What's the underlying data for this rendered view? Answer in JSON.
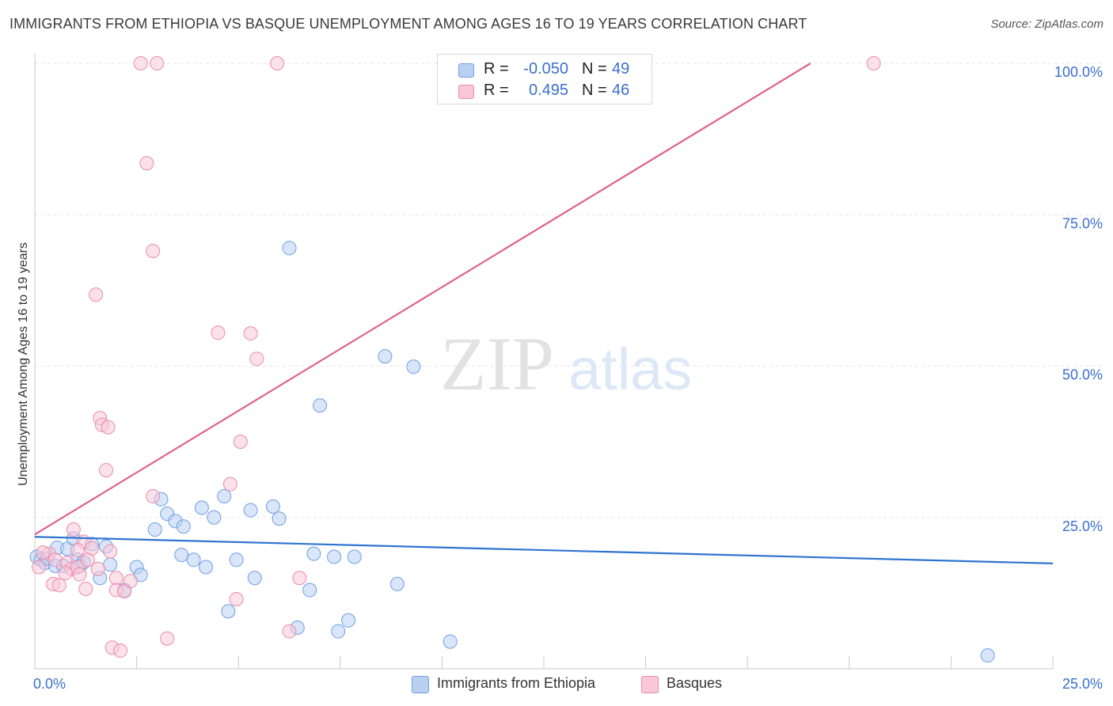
{
  "title": "IMMIGRANTS FROM ETHIOPIA VS BASQUE UNEMPLOYMENT AMONG AGES 16 TO 19 YEARS CORRELATION CHART",
  "source": "Source: ZipAtlas.com",
  "watermark": {
    "zip": "ZIP",
    "atlas": "atlas"
  },
  "legend": {
    "rows": [
      {
        "r_label": "R =",
        "r_value": "-0.050",
        "n_label": "N =",
        "n_value": "49"
      },
      {
        "r_label": "R =",
        "r_value": "0.495",
        "n_label": "N =",
        "n_value": "46"
      }
    ]
  },
  "chart_data": {
    "type": "scatter",
    "xlabel": "",
    "ylabel": "Unemployment Among Ages 16 to 19 years",
    "xlim": [
      0,
      25
    ],
    "ylim": [
      0,
      100
    ],
    "x_tick_labels": [
      {
        "value": 0,
        "label": "0.0%"
      },
      {
        "value": 25,
        "label": "25.0%"
      }
    ],
    "y_tick_labels": [
      {
        "value": 25,
        "label": "25.0%"
      },
      {
        "value": 50,
        "label": "50.0%"
      },
      {
        "value": 75,
        "label": "75.0%"
      },
      {
        "value": 100,
        "label": "100.0%"
      }
    ],
    "grid": true,
    "series": [
      {
        "name": "Immigrants from Ethiopia",
        "color": "#6d9fe6",
        "fill": "#b9d0f3",
        "trend": {
          "x": [
            0,
            25
          ],
          "y": [
            21.8,
            17.4
          ],
          "color": "#2f73d0"
        },
        "points": [
          [
            0.05,
            18.5
          ],
          [
            0.15,
            18.0
          ],
          [
            0.25,
            17.5
          ],
          [
            0.3,
            18.2
          ],
          [
            0.5,
            17.0
          ],
          [
            0.55,
            20.0
          ],
          [
            0.7,
            17.0
          ],
          [
            0.8,
            19.8
          ],
          [
            0.95,
            21.5
          ],
          [
            1.05,
            18.0
          ],
          [
            1.1,
            17.0
          ],
          [
            1.2,
            17.6
          ],
          [
            1.4,
            20.6
          ],
          [
            1.6,
            15.0
          ],
          [
            1.75,
            20.2
          ],
          [
            1.85,
            17.2
          ],
          [
            2.2,
            13.0
          ],
          [
            2.5,
            16.8
          ],
          [
            2.6,
            15.5
          ],
          [
            2.95,
            23.0
          ],
          [
            3.1,
            28.0
          ],
          [
            3.25,
            25.6
          ],
          [
            3.45,
            24.4
          ],
          [
            3.6,
            18.8
          ],
          [
            3.65,
            23.5
          ],
          [
            3.9,
            18.0
          ],
          [
            4.1,
            26.6
          ],
          [
            4.2,
            16.8
          ],
          [
            4.4,
            25.0
          ],
          [
            4.65,
            28.5
          ],
          [
            4.75,
            9.5
          ],
          [
            4.95,
            18.0
          ],
          [
            5.3,
            26.2
          ],
          [
            5.4,
            15.0
          ],
          [
            5.85,
            26.8
          ],
          [
            6.0,
            24.8
          ],
          [
            6.25,
            69.5
          ],
          [
            6.45,
            6.8
          ],
          [
            6.75,
            13.0
          ],
          [
            6.85,
            19.0
          ],
          [
            7.0,
            43.5
          ],
          [
            7.35,
            18.5
          ],
          [
            7.45,
            6.2
          ],
          [
            7.7,
            8.0
          ],
          [
            7.85,
            18.5
          ],
          [
            8.6,
            51.6
          ],
          [
            8.9,
            14.0
          ],
          [
            9.3,
            49.9
          ],
          [
            10.2,
            4.5
          ],
          [
            23.4,
            2.2
          ]
        ]
      },
      {
        "name": "Basques",
        "color": "#ec8aaa",
        "fill": "#f8c8d8",
        "trend": {
          "x": [
            0,
            19.05
          ],
          "y": [
            22.2,
            100
          ],
          "color": "#e0608c"
        },
        "points": [
          [
            0.1,
            16.8
          ],
          [
            0.35,
            19.0
          ],
          [
            0.45,
            14.0
          ],
          [
            0.5,
            18.0
          ],
          [
            0.6,
            13.8
          ],
          [
            0.8,
            17.5
          ],
          [
            0.9,
            16.5
          ],
          [
            0.95,
            23.0
          ],
          [
            1.05,
            16.8
          ],
          [
            1.1,
            15.6
          ],
          [
            1.2,
            21.0
          ],
          [
            1.25,
            13.2
          ],
          [
            1.3,
            18.0
          ],
          [
            1.4,
            19.9
          ],
          [
            1.5,
            61.8
          ],
          [
            1.55,
            16.5
          ],
          [
            1.6,
            41.4
          ],
          [
            1.65,
            40.3
          ],
          [
            1.8,
            39.9
          ],
          [
            1.75,
            32.8
          ],
          [
            1.85,
            19.4
          ],
          [
            1.9,
            3.5
          ],
          [
            2.0,
            15.0
          ],
          [
            2.0,
            13.0
          ],
          [
            2.1,
            3.0
          ],
          [
            2.2,
            12.8
          ],
          [
            2.35,
            14.5
          ],
          [
            2.6,
            100
          ],
          [
            2.75,
            83.5
          ],
          [
            2.9,
            28.5
          ],
          [
            2.9,
            69.0
          ],
          [
            3.0,
            100
          ],
          [
            3.25,
            5.0
          ],
          [
            4.5,
            55.5
          ],
          [
            4.8,
            30.5
          ],
          [
            4.95,
            11.5
          ],
          [
            5.05,
            37.5
          ],
          [
            5.3,
            55.4
          ],
          [
            5.45,
            51.2
          ],
          [
            5.95,
            100
          ],
          [
            6.25,
            6.2
          ],
          [
            6.5,
            15.0
          ],
          [
            20.6,
            100
          ],
          [
            0.2,
            19.2
          ],
          [
            1.05,
            19.6
          ],
          [
            0.75,
            15.8
          ]
        ]
      }
    ]
  },
  "bottom_legend": [
    {
      "label": "Immigrants from Ethiopia"
    },
    {
      "label": "Basques"
    }
  ]
}
